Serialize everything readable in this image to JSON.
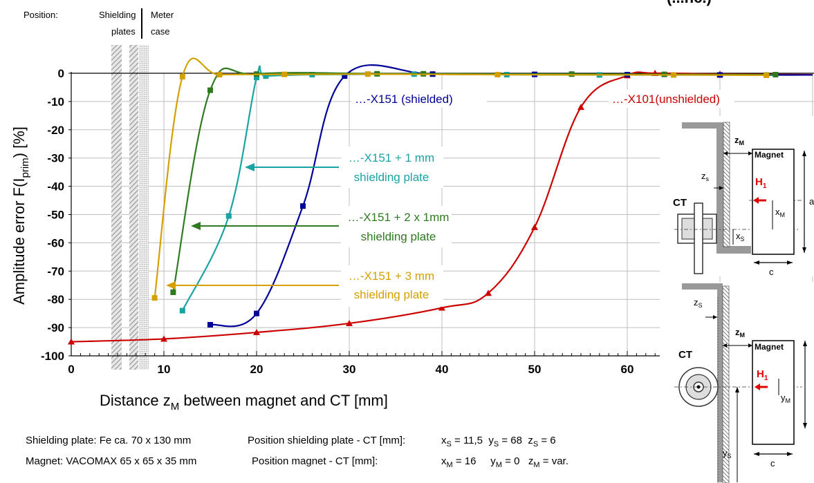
{
  "header": {
    "position_label": "Position:",
    "shielding_l1": "Shielding",
    "shielding_l2": "plates",
    "meter_l1": "Meter",
    "meter_l2": "case",
    "title_cut": "(...nc.)"
  },
  "chart_data": {
    "type": "line",
    "title": "",
    "xlabel_main": "Distance z",
    "xlabel_sub": "M",
    "xlabel_rest": " between magnet and CT [mm]",
    "ylabel_main": "Amplitude error F(I",
    "ylabel_sub": "prim",
    "ylabel_rest": ") [%]",
    "xlim": [
      0,
      80
    ],
    "ylim": [
      -100,
      0
    ],
    "x_ticks": [
      0,
      10,
      20,
      30,
      40,
      50,
      60
    ],
    "x_tick_labels": [
      "0",
      "10",
      "20",
      "30",
      "40",
      "50",
      "60"
    ],
    "y_ticks": [
      0,
      -10,
      -20,
      -30,
      -40,
      -50,
      -60,
      -70,
      -80,
      -90,
      -100
    ],
    "y_tick_labels": [
      "0",
      "-10",
      "-20",
      "-30",
      "-40",
      "-50",
      "-60",
      "-70",
      "-80",
      "-90",
      "-100"
    ],
    "grid": true,
    "series": [
      {
        "name": "…-X101(unshielded)",
        "color": "#cc0000",
        "marker": "triangle",
        "x": [
          0,
          10,
          20,
          30,
          40,
          45,
          50,
          55,
          60,
          63,
          70,
          80
        ],
        "y": [
          -95,
          -94,
          -91.7,
          -88.5,
          -83,
          -77.8,
          -54.5,
          -12,
          -0.8,
          0,
          -0.3,
          -0.5
        ]
      },
      {
        "name": "…-X151 (shielded)",
        "color": "#000099",
        "marker": "square",
        "x": [
          15,
          20,
          25,
          29.5,
          39,
          50,
          60,
          70,
          80
        ],
        "y": [
          -89,
          -85,
          -47,
          -1,
          -0.3,
          -0.4,
          -0.5,
          -0.6,
          -0.6
        ]
      },
      {
        "name": "…-X151 + 1 mm shielding plate",
        "color": "#1aa3a3",
        "marker": "square",
        "x": [
          12,
          17,
          20,
          21,
          26,
          37,
          47,
          57,
          75
        ],
        "y": [
          -84,
          -50.5,
          -1.5,
          -1,
          -0.5,
          -0.3,
          -0.5,
          -0.6,
          -0.6
        ]
      },
      {
        "name": "…-X151 + 2 x 1mm shielding plate",
        "color": "#2d7a1f",
        "marker": "square",
        "x": [
          11,
          15,
          20,
          33,
          38,
          54,
          64,
          76
        ],
        "y": [
          -77.5,
          -6,
          -0.3,
          -0.2,
          -0.2,
          -0.3,
          -0.4,
          -0.5
        ]
      },
      {
        "name": "…-X151 + 3 mm shielding plate",
        "color": "#d4a000",
        "marker": "square",
        "x": [
          9,
          12,
          16,
          23,
          32,
          46,
          65,
          75
        ],
        "y": [
          -79.5,
          -1.2,
          -0.5,
          -0.4,
          -0.3,
          -0.5,
          -0.6,
          -0.7
        ]
      }
    ],
    "annotations": {
      "x151": "…-X151 (shielded)",
      "x101": "…-X101(unshielded)",
      "p1_l1": "…-X151 + 1 mm",
      "p1_l2": "shielding plate",
      "p2_l1": "…-X151 + 2 x 1mm",
      "p2_l2": "shielding plate",
      "p3_l1": "…-X151 + 3 mm",
      "p3_l2": "shielding plate"
    }
  },
  "diagram_top": {
    "zM": "z",
    "zM_sub": "M",
    "magnet": "Magnet",
    "H1": "H",
    "H1_sub": "1",
    "zs": "z",
    "zs_sub": "s",
    "CT": "CT",
    "xM": "x",
    "xM_sub": "M",
    "xS": "x",
    "xS_sub": "S",
    "a": "a",
    "c": "c"
  },
  "diagram_bottom": {
    "zS": "z",
    "zS_sub": "S",
    "zM": "z",
    "zM_sub": "M",
    "magnet": "Magnet",
    "CT": "CT",
    "H1": "H",
    "H1_sub": "1",
    "yM": "y",
    "yM_sub": "M",
    "yS": "y",
    "yS_sub": "S",
    "c": "c"
  },
  "footer": {
    "line1_a": "Shielding plate:  Fe ca. 70 x 130 mm",
    "line1_b": "Position shielding plate - CT [mm]:",
    "line1_c1": "x",
    "line1_c1s": "S",
    "line1_c1v": " = 11,5  ",
    "line1_c2": "y",
    "line1_c2s": "S",
    "line1_c2v": " = 68  ",
    "line1_c3": "z",
    "line1_c3s": "S",
    "line1_c3v": " = 6",
    "line2_a": "Magnet:  VACOMAX 65 x 65 x 35 mm",
    "line2_b": "Position magnet - CT [mm]:",
    "line2_c1": "x",
    "line2_c1s": "M",
    "line2_c1v": " = 16     ",
    "line2_c2": "y",
    "line2_c2s": "M",
    "line2_c2v": " = 0   ",
    "line2_c3": "z",
    "line2_c3s": "M",
    "line2_c3v": " = var."
  }
}
